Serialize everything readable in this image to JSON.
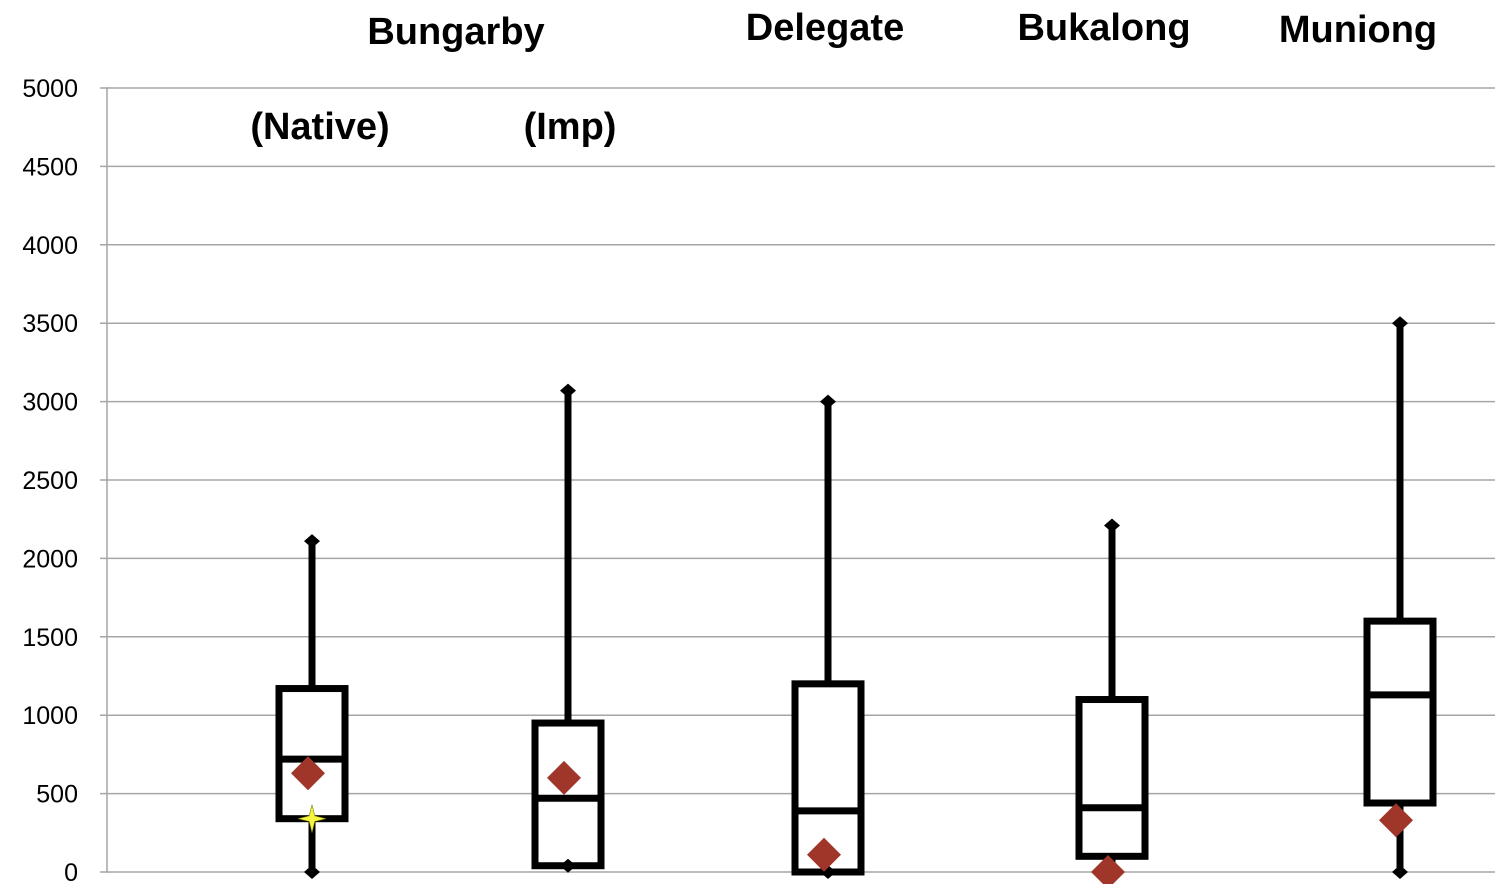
{
  "chart_data": {
    "type": "box",
    "title": "",
    "xlabel": "",
    "ylabel": "",
    "ylim": [
      0,
      5000
    ],
    "yticks": [
      0,
      500,
      1000,
      1500,
      2000,
      2500,
      3000,
      3500,
      4000,
      4500,
      5000
    ],
    "grid": true,
    "header_labels": {
      "top": [
        "Bungarby",
        "Delegate",
        "Bukalong",
        "Muniong"
      ],
      "sub": [
        "(Native)",
        "(Imp)"
      ]
    },
    "series": [
      {
        "min": 0,
        "q1": 340,
        "median": 720,
        "q3": 1170,
        "max": 2110,
        "mean": 630,
        "extra_marker": 340
      },
      {
        "min": 40,
        "q1": 40,
        "median": 470,
        "q3": 950,
        "max": 3070,
        "mean": 600
      },
      {
        "min": 0,
        "q1": 0,
        "median": 390,
        "q3": 1200,
        "max": 3000,
        "mean": 110
      },
      {
        "min": 0,
        "q1": 100,
        "median": 410,
        "q3": 1100,
        "max": 2210,
        "mean": 0
      },
      {
        "min": 0,
        "q1": 440,
        "median": 1130,
        "q3": 1600,
        "max": 3500,
        "mean": 330
      }
    ],
    "colors": {
      "mean_marker": "#a0352a",
      "grid": "#a6a6a6",
      "extra_marker": "#f5f542"
    }
  }
}
